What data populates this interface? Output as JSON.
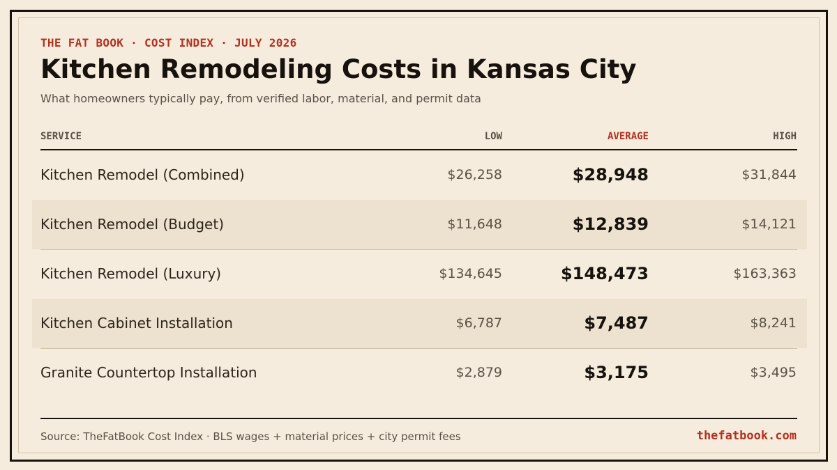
{
  "header": {
    "eyebrow": "THE FAT BOOK · COST INDEX · JULY 2026",
    "title": "Kitchen Remodeling Costs in Kansas City",
    "subtitle": "What homeowners typically pay, from verified labor, material, and permit data"
  },
  "table": {
    "columns": {
      "service": "SERVICE",
      "low": "LOW",
      "average": "AVERAGE",
      "high": "HIGH"
    },
    "rows": [
      {
        "service": "Kitchen Remodel (Combined)",
        "low": "$26,258",
        "average": "$28,948",
        "high": "$31,844"
      },
      {
        "service": "Kitchen Remodel (Budget)",
        "low": "$11,648",
        "average": "$12,839",
        "high": "$14,121"
      },
      {
        "service": "Kitchen Remodel (Luxury)",
        "low": "$134,645",
        "average": "$148,473",
        "high": "$163,363"
      },
      {
        "service": "Kitchen Cabinet Installation",
        "low": "$6,787",
        "average": "$7,487",
        "high": "$8,241"
      },
      {
        "service": "Granite Countertop Installation",
        "low": "$2,879",
        "average": "$3,175",
        "high": "$3,495"
      }
    ]
  },
  "footer": {
    "source": "Source: TheFatBook Cost Index · BLS wages + material prices + city permit fees",
    "site": "thefatbook.com"
  },
  "colors": {
    "background": "#f5ecde",
    "accent": "#b3311f",
    "ink": "#17120c",
    "row_shade": "#ede2cf"
  }
}
